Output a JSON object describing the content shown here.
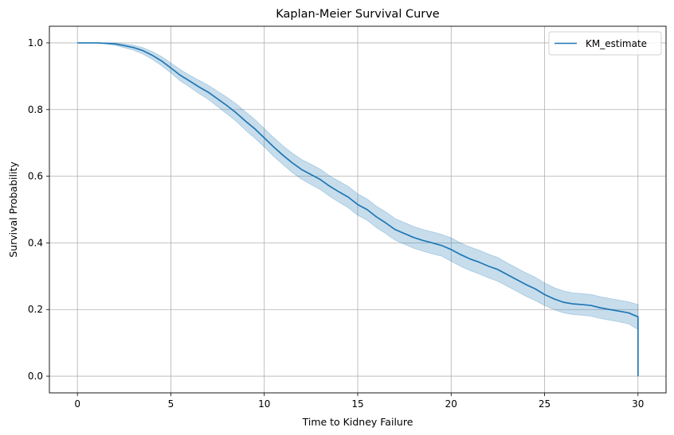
{
  "chart_data": {
    "type": "line",
    "title": "Kaplan-Meier Survival Curve",
    "xlabel": "Time to Kidney Failure",
    "ylabel": "Survival Probability",
    "xlim": [
      -1.5,
      31.5
    ],
    "ylim": [
      -0.05,
      1.05
    ],
    "grid": true,
    "legend_position": "top-right",
    "x_ticks": [
      0,
      5,
      10,
      15,
      20,
      25,
      30
    ],
    "x_tick_labels": [
      "0",
      "5",
      "10",
      "15",
      "20",
      "25",
      "30"
    ],
    "y_ticks": [
      0.0,
      0.2,
      0.4,
      0.6,
      0.8,
      1.0
    ],
    "y_tick_labels": [
      "0.0",
      "0.2",
      "0.4",
      "0.6",
      "0.8",
      "1.0"
    ],
    "colors": {
      "line": "#1f77b4",
      "band": "#1f77b4",
      "grid": "#b0b0b0",
      "axes": "#000000"
    },
    "series": [
      {
        "name": "KM_estimate",
        "x": [
          0,
          1,
          1.5,
          2,
          2.5,
          3,
          3.5,
          4,
          4.5,
          5,
          5.5,
          6,
          6.5,
          7,
          7.5,
          8,
          8.5,
          9,
          9.5,
          10,
          10.5,
          11,
          11.5,
          12,
          12.5,
          13,
          13.5,
          14,
          14.5,
          15,
          15.5,
          16,
          16.5,
          17,
          17.5,
          18,
          18.5,
          19,
          19.5,
          20,
          20.5,
          21,
          21.5,
          22,
          22.5,
          23,
          23.5,
          24,
          24.5,
          25,
          25.5,
          26,
          26.5,
          27,
          27.5,
          28,
          28.5,
          29,
          29.5,
          30,
          30
        ],
        "y": [
          1.0,
          1.0,
          0.999,
          0.997,
          0.992,
          0.986,
          0.977,
          0.963,
          0.946,
          0.925,
          0.903,
          0.886,
          0.868,
          0.852,
          0.832,
          0.812,
          0.79,
          0.765,
          0.742,
          0.715,
          0.688,
          0.663,
          0.64,
          0.62,
          0.605,
          0.59,
          0.57,
          0.553,
          0.537,
          0.515,
          0.5,
          0.478,
          0.46,
          0.44,
          0.428,
          0.416,
          0.407,
          0.4,
          0.392,
          0.38,
          0.365,
          0.352,
          0.342,
          0.33,
          0.32,
          0.305,
          0.29,
          0.275,
          0.262,
          0.245,
          0.232,
          0.222,
          0.217,
          0.215,
          0.212,
          0.205,
          0.2,
          0.195,
          0.19,
          0.178,
          0.0
        ],
        "ci_lower": [
          1.0,
          1.0,
          0.997,
          0.993,
          0.986,
          0.978,
          0.967,
          0.951,
          0.932,
          0.91,
          0.886,
          0.868,
          0.848,
          0.831,
          0.809,
          0.787,
          0.765,
          0.738,
          0.714,
          0.688,
          0.66,
          0.635,
          0.611,
          0.591,
          0.575,
          0.56,
          0.54,
          0.522,
          0.505,
          0.483,
          0.468,
          0.446,
          0.428,
          0.408,
          0.396,
          0.384,
          0.375,
          0.367,
          0.36,
          0.345,
          0.33,
          0.317,
          0.307,
          0.295,
          0.285,
          0.27,
          0.255,
          0.24,
          0.227,
          0.212,
          0.2,
          0.19,
          0.185,
          0.183,
          0.18,
          0.173,
          0.168,
          0.163,
          0.157,
          0.14,
          0.14
        ],
        "ci_upper": [
          1.0,
          1.0,
          1.0,
          1.0,
          0.997,
          0.993,
          0.986,
          0.974,
          0.959,
          0.94,
          0.92,
          0.903,
          0.888,
          0.873,
          0.855,
          0.837,
          0.817,
          0.793,
          0.77,
          0.743,
          0.716,
          0.691,
          0.669,
          0.65,
          0.636,
          0.621,
          0.601,
          0.585,
          0.569,
          0.547,
          0.532,
          0.51,
          0.493,
          0.473,
          0.461,
          0.449,
          0.44,
          0.433,
          0.425,
          0.415,
          0.4,
          0.388,
          0.378,
          0.366,
          0.356,
          0.34,
          0.325,
          0.31,
          0.297,
          0.28,
          0.266,
          0.256,
          0.25,
          0.248,
          0.245,
          0.238,
          0.233,
          0.228,
          0.223,
          0.215,
          0.215
        ]
      }
    ]
  }
}
